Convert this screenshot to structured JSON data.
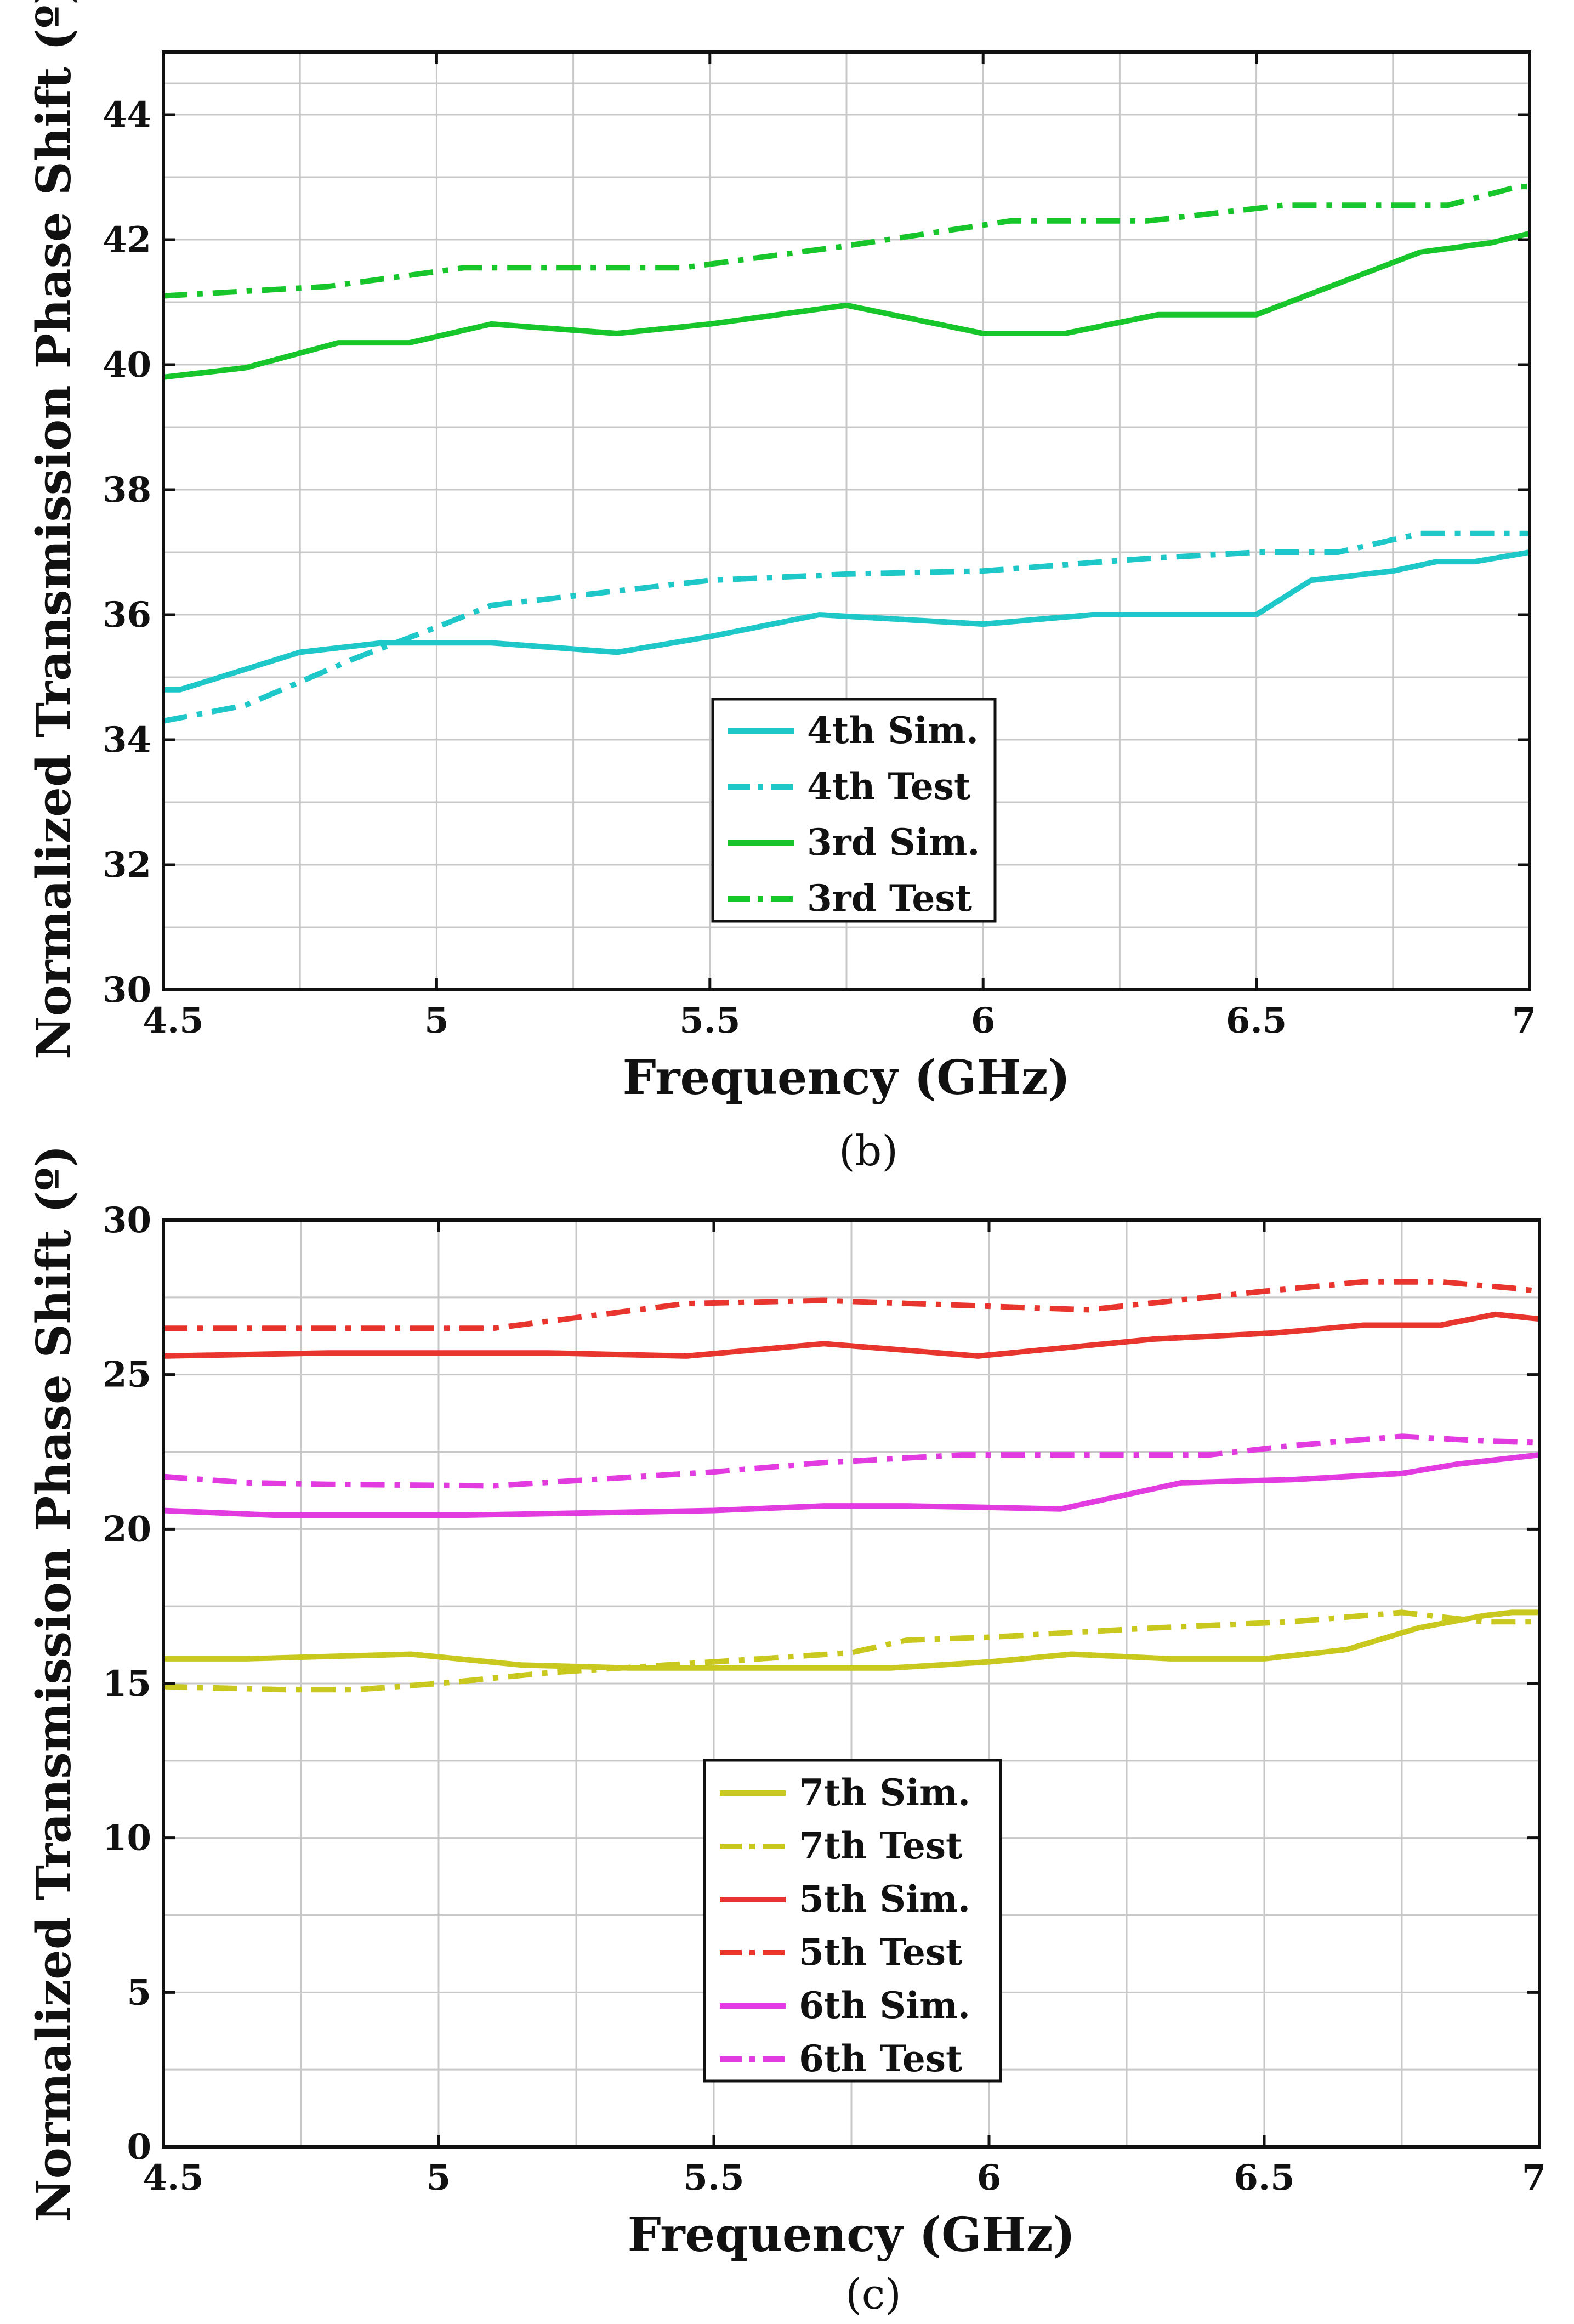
{
  "chart_data": [
    {
      "type": "line",
      "panel_label": "(b)",
      "xlabel": "Frequency (GHz)",
      "ylabel": "Normalized Transmission Phase Shift (º)",
      "xlim": [
        4.5,
        7
      ],
      "ylim": [
        30,
        45
      ],
      "xticks": [
        4.5,
        5,
        5.5,
        6,
        6.5,
        7
      ],
      "xtick_labels": [
        "4.5",
        "5",
        "5.5",
        "6",
        "6.5",
        "7"
      ],
      "yticks": [
        30,
        32,
        34,
        36,
        38,
        40,
        42,
        44
      ],
      "ytick_labels": [
        "30",
        "32",
        "34",
        "36",
        "38",
        "40",
        "42",
        "44"
      ],
      "grid": true,
      "legend_position": "center-bottom",
      "series": [
        {
          "name": "4th Sim.",
          "color": "#1ec8c8",
          "style": "solid",
          "x": [
            4.5,
            4.53,
            4.75,
            4.9,
            5.1,
            5.33,
            5.5,
            5.7,
            6.0,
            6.2,
            6.5,
            6.6,
            6.75,
            6.83,
            6.9,
            7.0
          ],
          "y": [
            34.8,
            34.8,
            35.4,
            35.55,
            35.55,
            35.4,
            35.65,
            36.0,
            35.85,
            36.0,
            36.0,
            36.55,
            36.7,
            36.85,
            36.85,
            37.0
          ]
        },
        {
          "name": "4th Test",
          "color": "#1ec8c8",
          "style": "dashdot",
          "x": [
            4.5,
            4.65,
            4.85,
            5.0,
            5.1,
            5.3,
            5.5,
            5.75,
            6.0,
            6.3,
            6.5,
            6.65,
            6.8,
            6.9,
            7.0
          ],
          "y": [
            34.3,
            34.55,
            35.3,
            35.8,
            36.15,
            36.35,
            36.55,
            36.65,
            36.7,
            36.9,
            37.0,
            37.0,
            37.3,
            37.3,
            37.3
          ]
        },
        {
          "name": "3rd Sim.",
          "color": "#17c62a",
          "style": "solid",
          "x": [
            4.5,
            4.65,
            4.82,
            4.95,
            5.1,
            5.33,
            5.5,
            5.75,
            6.0,
            6.15,
            6.32,
            6.5,
            6.65,
            6.8,
            6.93,
            7.0
          ],
          "y": [
            39.8,
            39.95,
            40.35,
            40.35,
            40.65,
            40.5,
            40.65,
            40.95,
            40.5,
            40.5,
            40.8,
            40.8,
            41.3,
            41.8,
            41.95,
            42.1
          ]
        },
        {
          "name": "3rd Test",
          "color": "#17c62a",
          "style": "dashdot",
          "x": [
            4.5,
            4.8,
            5.05,
            5.25,
            5.45,
            5.75,
            6.05,
            6.3,
            6.55,
            6.85,
            6.98,
            7.0
          ],
          "y": [
            41.1,
            41.25,
            41.55,
            41.55,
            41.55,
            41.9,
            42.3,
            42.3,
            42.55,
            42.55,
            42.85,
            42.85
          ]
        }
      ]
    },
    {
      "type": "line",
      "panel_label": "(c)",
      "xlabel": "Frequency (GHz)",
      "ylabel": "Normalized Transmission Phase Shift (º)",
      "xlim": [
        4.5,
        7
      ],
      "ylim": [
        0,
        30
      ],
      "xticks": [
        4.5,
        5,
        5.5,
        6,
        6.5,
        7
      ],
      "xtick_labels": [
        "4.5",
        "5",
        "5.5",
        "6",
        "6.5",
        "7"
      ],
      "yticks": [
        0,
        5,
        10,
        15,
        20,
        25,
        30
      ],
      "ytick_labels": [
        "0",
        "5",
        "10",
        "15",
        "20",
        "25",
        "30"
      ],
      "grid": true,
      "legend_position": "center-bottom",
      "series": [
        {
          "name": "7th Sim.",
          "color": "#c8c81e",
          "style": "solid",
          "x": [
            4.5,
            4.65,
            4.95,
            5.15,
            5.35,
            5.55,
            5.82,
            6.0,
            6.15,
            6.33,
            6.5,
            6.65,
            6.78,
            6.9,
            6.95,
            7.0
          ],
          "y": [
            15.8,
            15.8,
            15.95,
            15.6,
            15.5,
            15.5,
            15.5,
            15.7,
            15.95,
            15.8,
            15.8,
            16.1,
            16.8,
            17.2,
            17.3,
            17.3
          ]
        },
        {
          "name": "7th Test",
          "color": "#c8c81e",
          "style": "dashdot",
          "x": [
            4.5,
            4.72,
            4.85,
            5.0,
            5.2,
            5.5,
            5.75,
            5.85,
            6.0,
            6.3,
            6.55,
            6.75,
            6.9,
            7.0
          ],
          "y": [
            14.9,
            14.8,
            14.8,
            15.0,
            15.35,
            15.7,
            16.0,
            16.4,
            16.5,
            16.8,
            17.0,
            17.3,
            17.0,
            17.0
          ]
        },
        {
          "name": "5th Sim.",
          "color": "#e8352e",
          "style": "solid",
          "x": [
            4.5,
            4.8,
            5.2,
            5.45,
            5.7,
            5.98,
            6.3,
            6.52,
            6.68,
            6.82,
            6.92,
            7.0
          ],
          "y": [
            25.6,
            25.7,
            25.7,
            25.6,
            26.0,
            25.6,
            26.15,
            26.35,
            26.6,
            26.6,
            26.95,
            26.8
          ]
        },
        {
          "name": "5th Test",
          "color": "#e8352e",
          "style": "dashdot",
          "x": [
            4.5,
            5.1,
            5.45,
            5.7,
            6.18,
            6.5,
            6.68,
            6.82,
            6.95,
            7.0
          ],
          "y": [
            26.5,
            26.5,
            27.3,
            27.4,
            27.1,
            27.7,
            28.0,
            28.0,
            27.8,
            27.7
          ]
        },
        {
          "name": "6th Sim.",
          "color": "#e23ce0",
          "style": "solid",
          "x": [
            4.5,
            4.7,
            5.05,
            5.5,
            5.7,
            5.85,
            6.0,
            6.13,
            6.35,
            6.55,
            6.75,
            6.85,
            7.0
          ],
          "y": [
            20.6,
            20.45,
            20.45,
            20.6,
            20.75,
            20.75,
            20.7,
            20.65,
            21.5,
            21.6,
            21.8,
            22.1,
            22.4
          ]
        },
        {
          "name": "6th Test",
          "color": "#e23ce0",
          "style": "dashdot",
          "x": [
            4.5,
            4.65,
            4.8,
            5.1,
            5.5,
            5.7,
            5.95,
            6.2,
            6.4,
            6.55,
            6.75,
            6.9,
            7.0
          ],
          "y": [
            21.7,
            21.5,
            21.45,
            21.4,
            21.85,
            22.15,
            22.4,
            22.4,
            22.4,
            22.7,
            23.0,
            22.85,
            22.8
          ]
        }
      ]
    }
  ]
}
